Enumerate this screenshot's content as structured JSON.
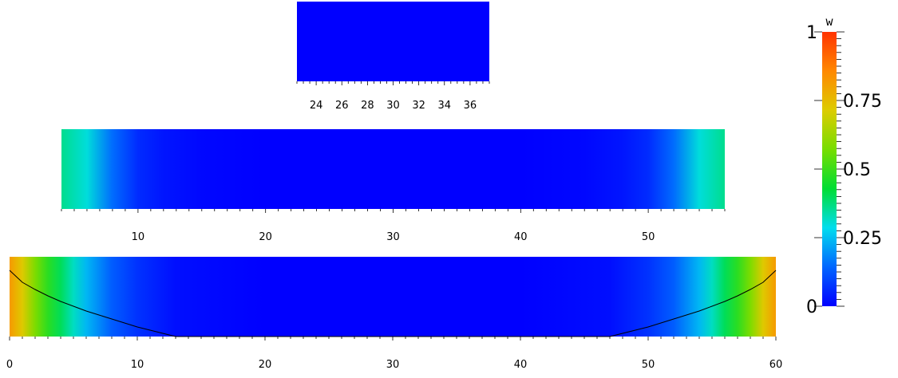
{
  "chart_data": [
    {
      "type": "heatmap",
      "x": [
        22.5,
        24,
        26,
        28,
        30,
        32,
        34,
        36,
        37.5
      ],
      "values": [
        0.0,
        0.0,
        0.0,
        0.0,
        0.0,
        0.0,
        0.0,
        0.0,
        0.0
      ],
      "xlim": [
        22.5,
        37.5
      ],
      "xticks": [
        "24",
        "26",
        "28",
        "30",
        "32",
        "34",
        "36"
      ],
      "xtick_values": [
        24,
        26,
        28,
        30,
        32,
        34,
        36
      ]
    },
    {
      "type": "heatmap",
      "x": [
        4,
        6,
        8,
        10,
        12,
        15,
        20,
        30,
        40,
        45,
        48,
        50,
        52,
        54,
        56
      ],
      "values": [
        0.36,
        0.3,
        0.15,
        0.06,
        0.03,
        0.01,
        0.0,
        0.0,
        0.0,
        0.01,
        0.03,
        0.06,
        0.15,
        0.3,
        0.36
      ],
      "xlim": [
        4,
        56
      ],
      "xticks": [
        "10",
        "20",
        "30",
        "40",
        "50"
      ],
      "xtick_values": [
        10,
        20,
        30,
        40,
        50
      ]
    },
    {
      "type": "heatmap",
      "x": [
        0,
        1,
        2,
        3,
        4,
        5,
        6,
        8,
        10,
        13,
        20,
        30,
        40,
        47,
        50,
        52,
        54,
        55,
        56,
        57,
        58,
        59,
        60
      ],
      "values": [
        0.82,
        0.72,
        0.58,
        0.48,
        0.4,
        0.32,
        0.24,
        0.13,
        0.07,
        0.02,
        0.0,
        0.0,
        0.0,
        0.02,
        0.07,
        0.13,
        0.24,
        0.32,
        0.4,
        0.48,
        0.58,
        0.72,
        0.82
      ],
      "xlim": [
        0,
        60
      ],
      "xticks": [
        "0",
        "10",
        "20",
        "30",
        "40",
        "50",
        "60"
      ],
      "xtick_values": [
        0,
        10,
        20,
        30,
        40,
        50,
        60
      ],
      "curve": {
        "x": [
          0,
          1,
          2,
          3,
          4,
          5,
          6,
          7,
          8,
          9,
          10,
          11,
          12,
          13,
          47,
          48,
          49,
          50,
          51,
          52,
          53,
          54,
          55,
          56,
          57,
          58,
          59,
          60
        ],
        "y": [
          0.83,
          0.68,
          0.59,
          0.51,
          0.44,
          0.38,
          0.32,
          0.27,
          0.22,
          0.17,
          0.12,
          0.08,
          0.04,
          0.0,
          0.0,
          0.04,
          0.08,
          0.12,
          0.17,
          0.22,
          0.27,
          0.32,
          0.38,
          0.44,
          0.51,
          0.59,
          0.68,
          0.83
        ]
      }
    }
  ],
  "colorbar": {
    "title": "w",
    "range": [
      0,
      1
    ],
    "ticks": [
      {
        "value": 1,
        "label": "1"
      },
      {
        "value": 0.75,
        "label": "0.75"
      },
      {
        "value": 0.5,
        "label": "0.5"
      },
      {
        "value": 0.25,
        "label": "0.25"
      },
      {
        "value": 0,
        "label": "0"
      }
    ],
    "stops": [
      "#0000ff",
      "#0066ff",
      "#00ddee",
      "#00dd33",
      "#77dd00",
      "#ddcc00",
      "#ff8800",
      "#ff3300"
    ]
  },
  "colors": {
    "curve": "#000000",
    "tick": "#000000"
  }
}
